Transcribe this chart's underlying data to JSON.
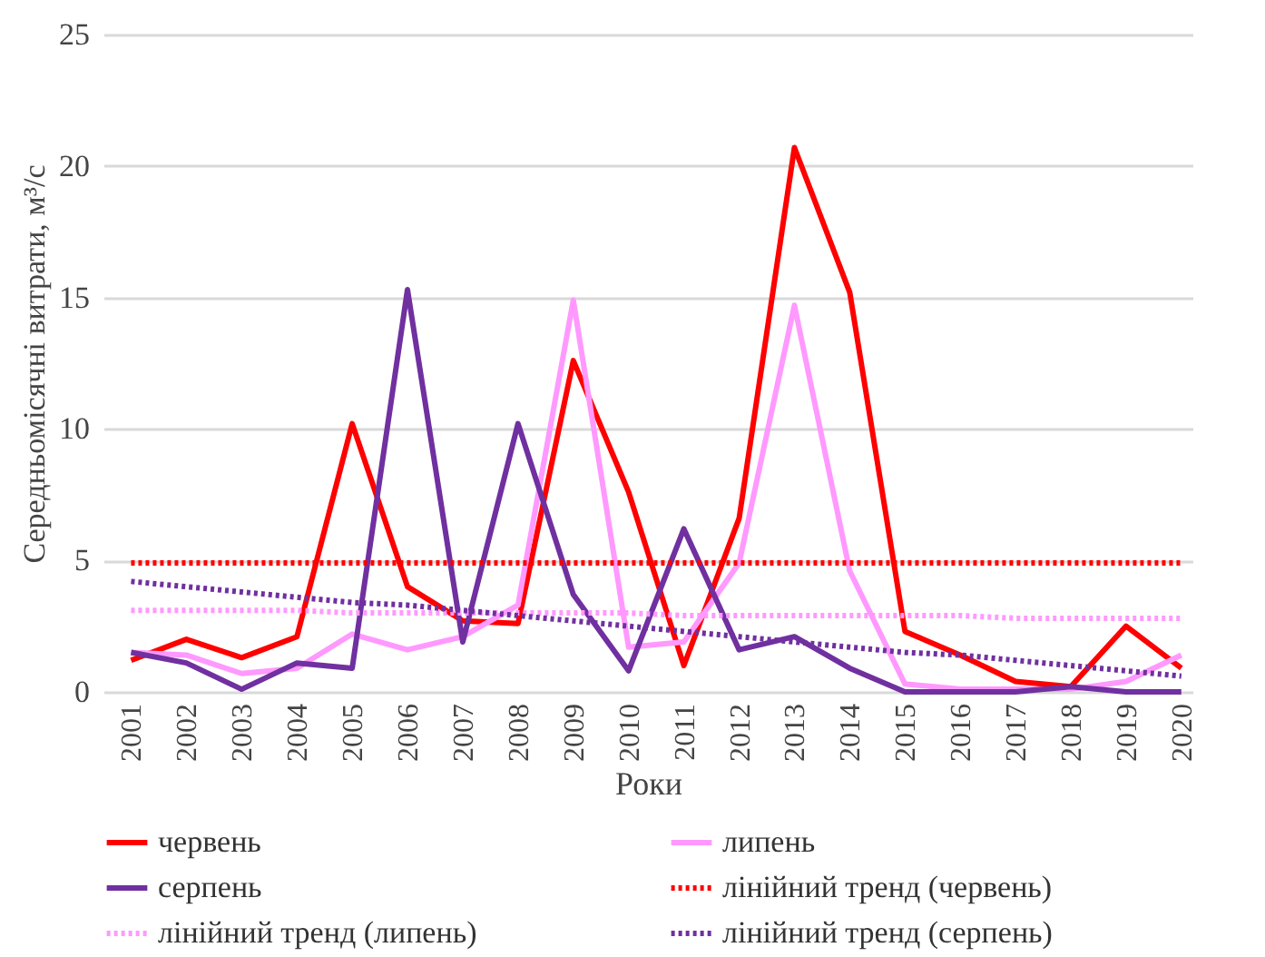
{
  "chart_data": {
    "type": "line",
    "xlabel": "Роки",
    "ylabel": "Середньомісячні витрати, м³/с",
    "x": [
      2001,
      2002,
      2003,
      2004,
      2005,
      2006,
      2007,
      2008,
      2009,
      2010,
      2011,
      2012,
      2013,
      2014,
      2015,
      2016,
      2017,
      2018,
      2019,
      2020
    ],
    "xlim": [
      2000.5,
      2020.2
    ],
    "xticks": [
      2001,
      2002,
      2003,
      2004,
      2005,
      2006,
      2007,
      2008,
      2009,
      2010,
      2011,
      2012,
      2013,
      2014,
      2015,
      2016,
      2017,
      2018,
      2019,
      2020
    ],
    "ylim": [
      0,
      25
    ],
    "yticks": [
      0,
      5,
      10,
      15,
      20,
      25
    ],
    "grid": "y",
    "legend": "bottom",
    "line_style": "solid",
    "series": [
      {
        "name": "червень",
        "color": "#ff0000",
        "values": [
          1.2,
          2.0,
          1.3,
          2.1,
          10.2,
          4.0,
          2.7,
          2.6,
          12.6,
          7.6,
          1.0,
          6.6,
          20.7,
          15.2,
          2.3,
          1.4,
          0.4,
          0.2,
          2.5,
          0.9
        ]
      },
      {
        "name": "липень",
        "color": "#ff99ff",
        "values": [
          1.5,
          1.4,
          0.7,
          0.9,
          2.2,
          1.6,
          2.1,
          3.3,
          14.9,
          1.7,
          1.9,
          4.9,
          14.7,
          4.6,
          0.3,
          0.1,
          0.1,
          0.1,
          0.4,
          1.4
        ]
      },
      {
        "name": "серпень",
        "color": "#7030a0",
        "values": [
          1.5,
          1.1,
          0.1,
          1.1,
          0.9,
          15.3,
          1.9,
          10.2,
          3.7,
          0.8,
          6.2,
          1.6,
          2.1,
          0.9,
          0.0,
          0.0,
          0.0,
          0.2,
          0.0,
          0.0
        ]
      },
      {
        "name": "лінійний тренд (червень)",
        "color": "#ff0000",
        "type": "line",
        "line_style": "dotted",
        "values": [
          4.9,
          4.9,
          4.9,
          4.9,
          4.9,
          4.9,
          4.9,
          4.9,
          4.9,
          4.9,
          4.9,
          4.9,
          4.9,
          4.9,
          4.9,
          4.9,
          4.9,
          4.9,
          4.9,
          4.9
        ]
      },
      {
        "name": "лінійний тренд (липень)",
        "color": "#ff99ff",
        "type": "line",
        "line_style": "dotted",
        "values": [
          3.1,
          3.1,
          3.1,
          3.1,
          3.0,
          3.0,
          3.0,
          3.0,
          3.0,
          3.0,
          2.9,
          2.9,
          2.9,
          2.9,
          2.9,
          2.9,
          2.8,
          2.8,
          2.8,
          2.8
        ]
      },
      {
        "name": "лінійний тренд (серпень)",
        "color": "#7030a0",
        "type": "line",
        "line_style": "dotted",
        "values": [
          4.2,
          4.0,
          3.8,
          3.6,
          3.4,
          3.3,
          3.1,
          2.9,
          2.7,
          2.5,
          2.3,
          2.1,
          1.9,
          1.7,
          1.5,
          1.4,
          1.2,
          1.0,
          0.8,
          0.6
        ]
      }
    ]
  }
}
